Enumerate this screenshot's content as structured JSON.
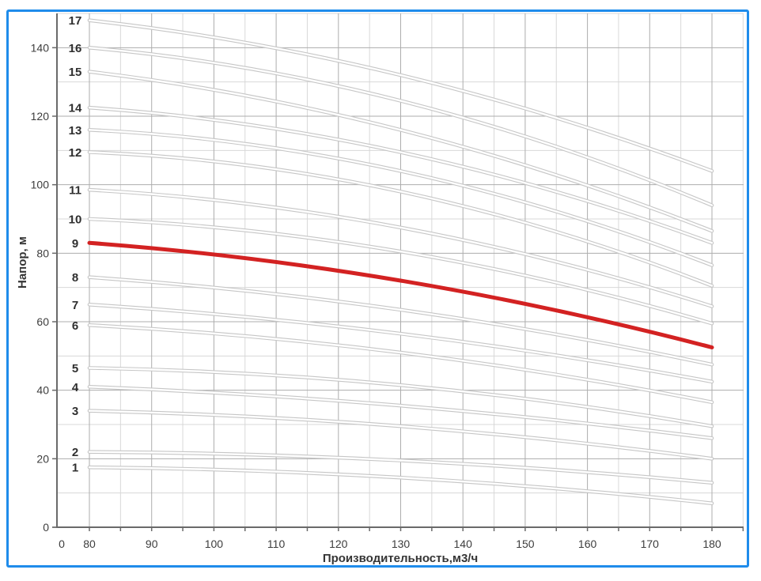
{
  "window": {
    "background": "#ffffff",
    "frame_border_color": "#1f8ceb"
  },
  "chart_data": {
    "type": "line",
    "title": "",
    "xlabel": "Производительность,м3/ч",
    "ylabel": "Напор, м",
    "x_tick_labels": [
      "0",
      "80",
      "90",
      "100",
      "110",
      "120",
      "130",
      "140",
      "150",
      "160",
      "170",
      "180"
    ],
    "x_tick_values": [
      0,
      80,
      90,
      100,
      110,
      120,
      130,
      140,
      150,
      160,
      170,
      180
    ],
    "y_tick_labels": [
      "0",
      "20",
      "40",
      "60",
      "80",
      "100",
      "120",
      "140"
    ],
    "y_tick_values": [
      0,
      20,
      40,
      60,
      80,
      100,
      120,
      140
    ],
    "axis_note": "x axis is broken between 0 and 80; minor x grid every 5, major every 10; minor y grid every 10, major every 20",
    "xlim": [
      80,
      185
    ],
    "ylim": [
      0,
      150
    ],
    "grid": true,
    "legend_position": "none",
    "x_samples": [
      80,
      130,
      180
    ],
    "series": [
      {
        "name": "17",
        "values": [
          148,
          132,
          104
        ]
      },
      {
        "name": "16",
        "values": [
          140,
          124.5,
          94
        ]
      },
      {
        "name": "15",
        "values": [
          133,
          116,
          86.5
        ]
      },
      {
        "name": "14",
        "values": [
          122.5,
          109.5,
          83
        ]
      },
      {
        "name": "13",
        "values": [
          116,
          104,
          76.5
        ]
      },
      {
        "name": "12",
        "values": [
          109.5,
          98,
          70.5
        ]
      },
      {
        "name": "11",
        "values": [
          98.5,
          87.5,
          64.5
        ]
      },
      {
        "name": "10",
        "values": [
          90,
          80.5,
          59.5
        ]
      },
      {
        "name": "9",
        "values": [
          83,
          72,
          52.5
        ],
        "highlight": true
      },
      {
        "name": "8",
        "values": [
          73,
          63.5,
          47.5
        ]
      },
      {
        "name": "7",
        "values": [
          65,
          56.5,
          42.5
        ]
      },
      {
        "name": "6",
        "values": [
          59,
          51,
          36.5
        ]
      },
      {
        "name": "5",
        "values": [
          46.5,
          41.5,
          29.5
        ]
      },
      {
        "name": "4",
        "values": [
          41,
          35.5,
          26
        ]
      },
      {
        "name": "3",
        "values": [
          34,
          29.5,
          20
        ]
      },
      {
        "name": "2",
        "values": [
          22,
          19.5,
          13
        ]
      },
      {
        "name": "1",
        "values": [
          17.5,
          14.5,
          7
        ]
      }
    ],
    "colors": {
      "highlight_curve": "#d32222",
      "curve_outline": "#c6c6c6",
      "curve_core": "#ffffff",
      "major_grid": "#adadad",
      "minor_grid": "#d8d8d8",
      "axis": "#6a6a6a",
      "text": "#3d3d3d"
    }
  }
}
